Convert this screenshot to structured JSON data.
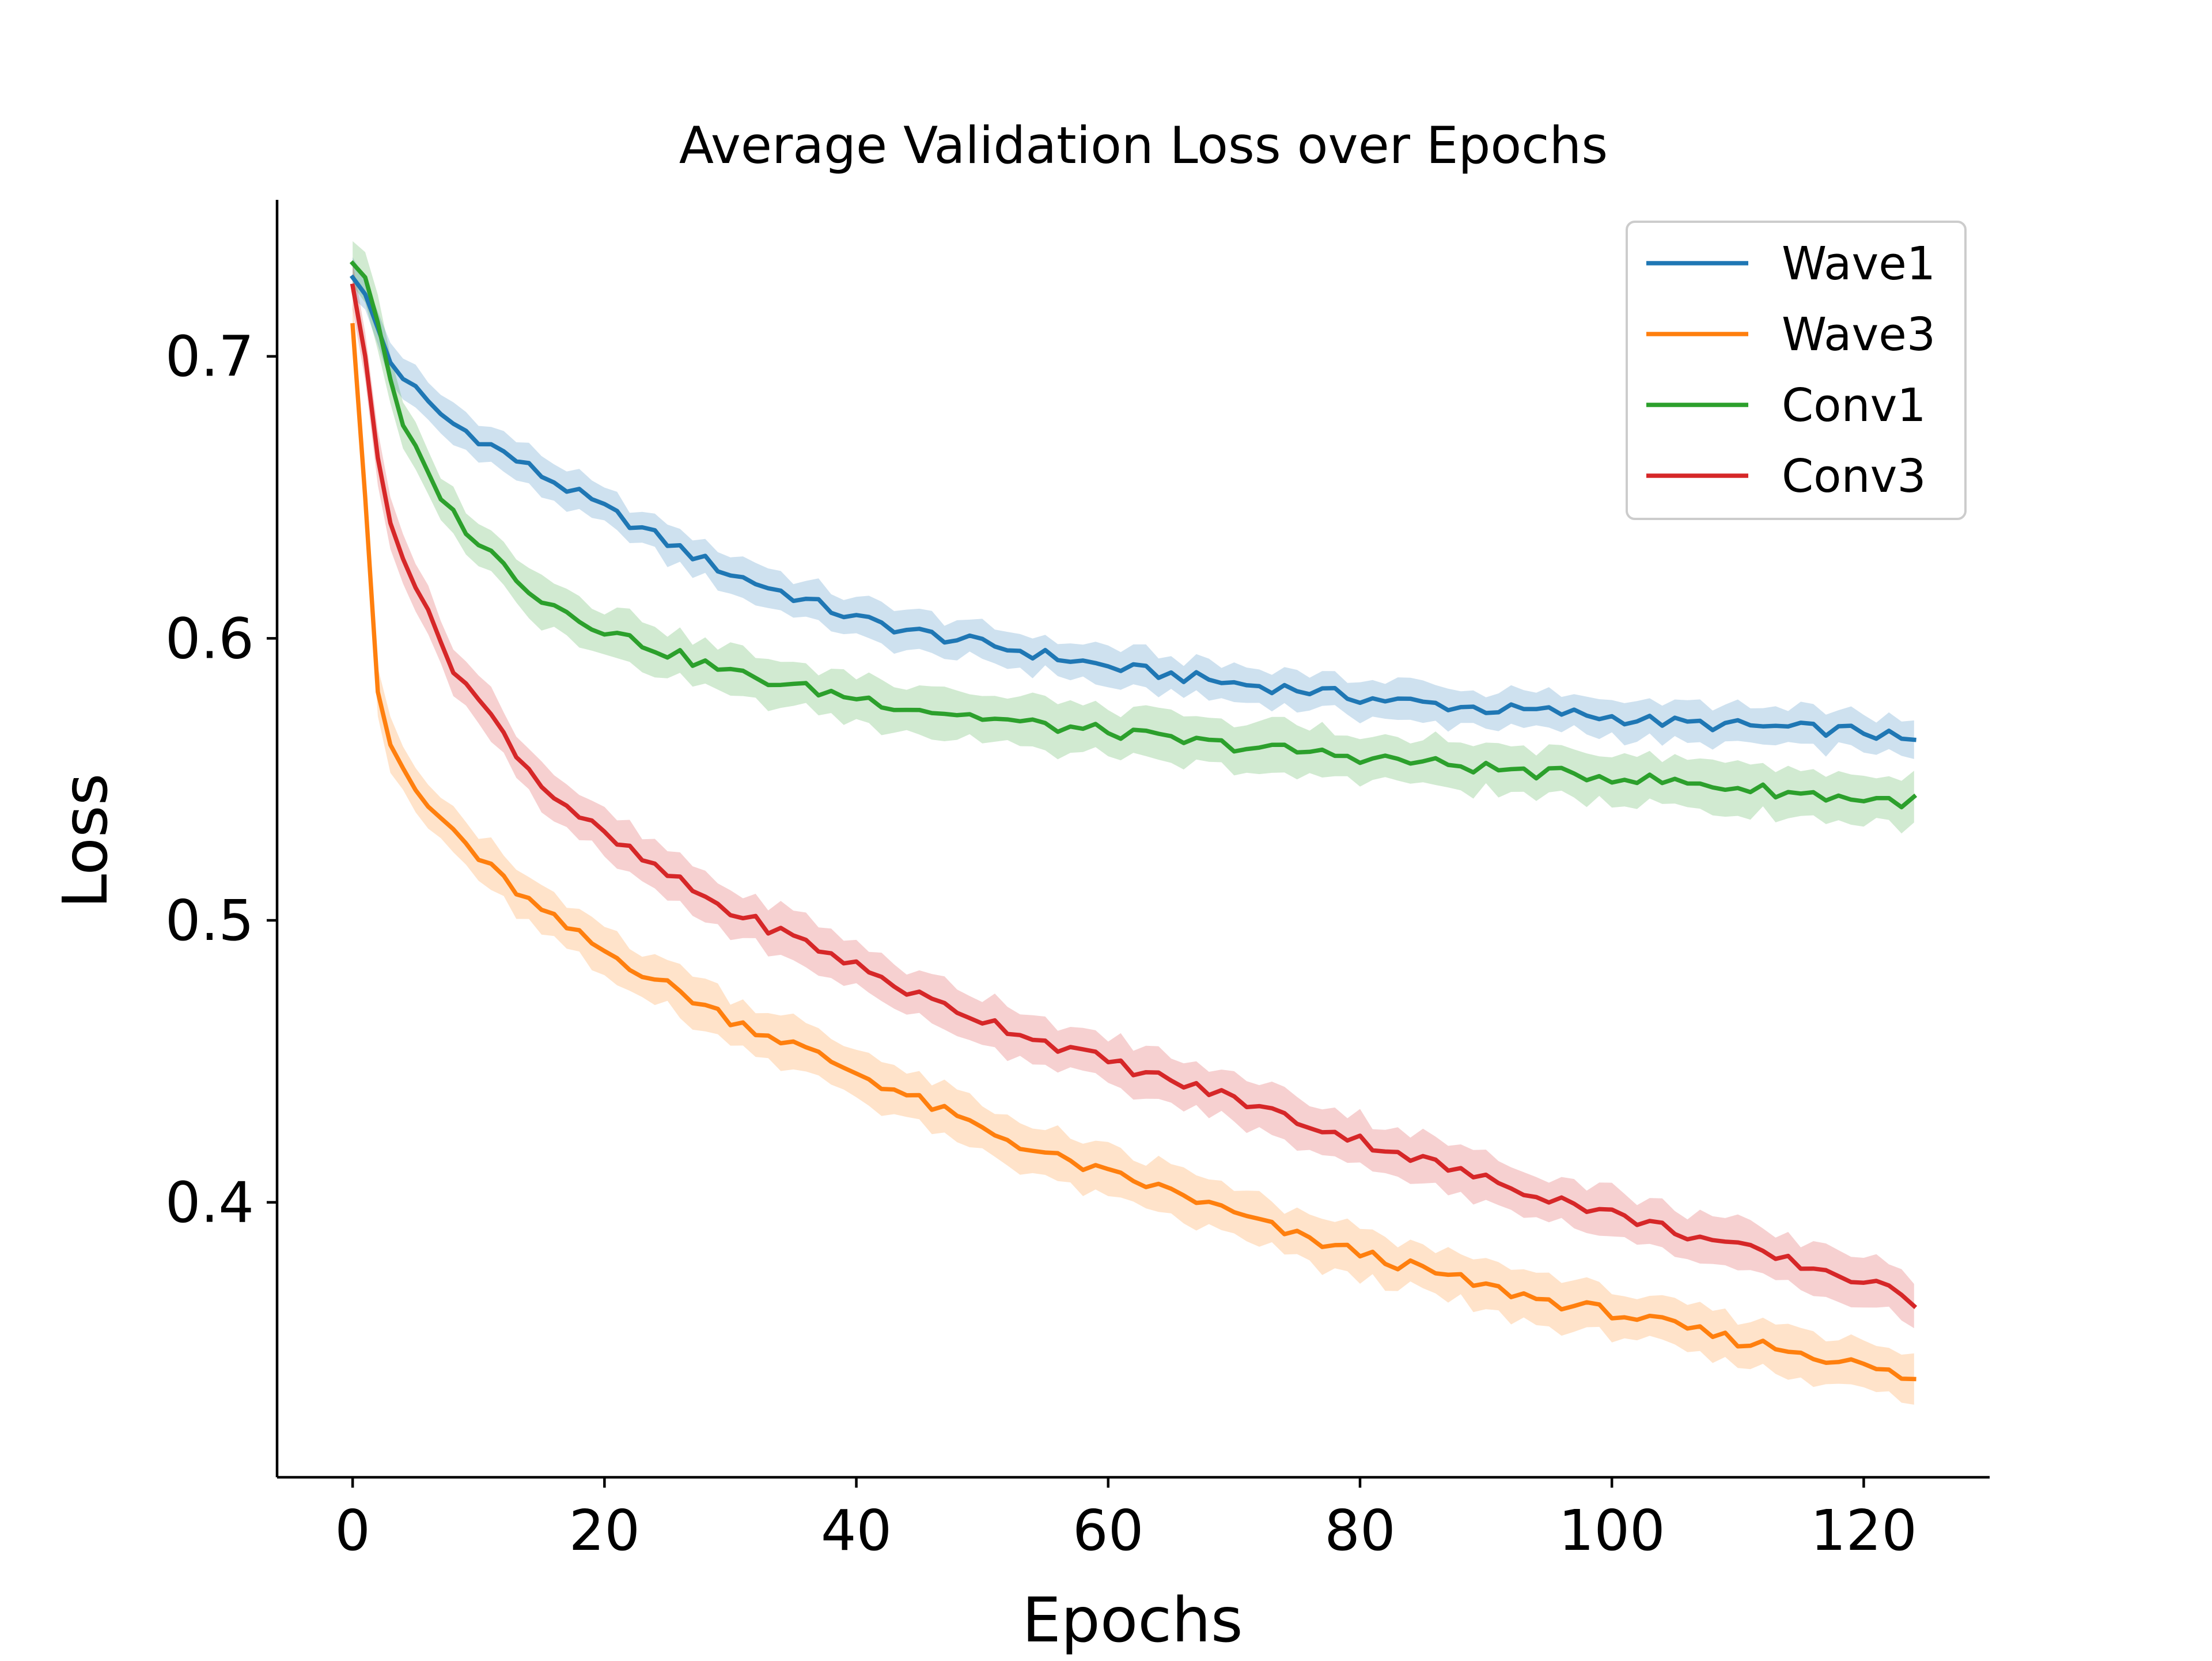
{
  "chart_data": {
    "type": "line",
    "title": "Average Validation Loss over Epochs",
    "xlabel": "Epochs",
    "ylabel": "Loss",
    "xlim": [
      -6,
      130
    ],
    "ylim": [
      0.3025,
      0.7555
    ],
    "x_ticks": [
      0,
      20,
      40,
      60,
      80,
      100,
      120
    ],
    "x_tick_labels": [
      "0",
      "20",
      "40",
      "60",
      "80",
      "100",
      "120"
    ],
    "y_ticks": [
      0.4,
      0.5,
      0.6,
      0.7
    ],
    "y_tick_labels": [
      "0.4",
      "0.5",
      "0.6",
      "0.7"
    ],
    "grid": false,
    "legend_position": "top-right",
    "x": {
      "start": 0,
      "end": 124,
      "step": 1
    },
    "series": [
      {
        "name": "Wave1",
        "color": "#1f77b4",
        "band_halfwidth": 0.0065,
        "keypoints": [
          [
            0,
            0.728
          ],
          [
            1,
            0.722
          ],
          [
            2,
            0.71
          ],
          [
            3,
            0.698
          ],
          [
            4,
            0.693
          ],
          [
            6,
            0.683
          ],
          [
            8,
            0.676
          ],
          [
            10,
            0.671
          ],
          [
            15,
            0.658
          ],
          [
            20,
            0.646
          ],
          [
            25,
            0.634
          ],
          [
            30,
            0.623
          ],
          [
            35,
            0.615
          ],
          [
            40,
            0.607
          ],
          [
            45,
            0.602
          ],
          [
            50,
            0.598
          ],
          [
            55,
            0.594
          ],
          [
            60,
            0.59
          ],
          [
            65,
            0.587
          ],
          [
            70,
            0.584
          ],
          [
            75,
            0.582
          ],
          [
            80,
            0.579
          ],
          [
            85,
            0.577
          ],
          [
            90,
            0.575
          ],
          [
            95,
            0.574
          ],
          [
            100,
            0.572
          ],
          [
            105,
            0.57
          ],
          [
            110,
            0.569
          ],
          [
            115,
            0.568
          ],
          [
            120,
            0.567
          ],
          [
            124,
            0.563
          ]
        ]
      },
      {
        "name": "Wave3",
        "color": "#ff7f0e",
        "band_halfwidth": 0.0085,
        "keypoints": [
          [
            0,
            0.711
          ],
          [
            1,
            0.65
          ],
          [
            2,
            0.581
          ],
          [
            3,
            0.563
          ],
          [
            4,
            0.552
          ],
          [
            6,
            0.54
          ],
          [
            8,
            0.532
          ],
          [
            10,
            0.522
          ],
          [
            15,
            0.503
          ],
          [
            20,
            0.489
          ],
          [
            25,
            0.477
          ],
          [
            30,
            0.465
          ],
          [
            35,
            0.456
          ],
          [
            40,
            0.446
          ],
          [
            45,
            0.436
          ],
          [
            50,
            0.426
          ],
          [
            55,
            0.417
          ],
          [
            60,
            0.41
          ],
          [
            65,
            0.404
          ],
          [
            70,
            0.396
          ],
          [
            75,
            0.388
          ],
          [
            80,
            0.382
          ],
          [
            85,
            0.376
          ],
          [
            90,
            0.37
          ],
          [
            95,
            0.365
          ],
          [
            100,
            0.361
          ],
          [
            105,
            0.356
          ],
          [
            110,
            0.351
          ],
          [
            115,
            0.347
          ],
          [
            120,
            0.342
          ],
          [
            124,
            0.337
          ]
        ]
      },
      {
        "name": "Conv1",
        "color": "#2ca02c",
        "band_halfwidth": 0.0085,
        "keypoints": [
          [
            0,
            0.733
          ],
          [
            1,
            0.728
          ],
          [
            2,
            0.712
          ],
          [
            3,
            0.69
          ],
          [
            4,
            0.675
          ],
          [
            6,
            0.658
          ],
          [
            8,
            0.644
          ],
          [
            10,
            0.634
          ],
          [
            15,
            0.614
          ],
          [
            20,
            0.603
          ],
          [
            25,
            0.595
          ],
          [
            30,
            0.588
          ],
          [
            35,
            0.583
          ],
          [
            40,
            0.579
          ],
          [
            45,
            0.575
          ],
          [
            50,
            0.572
          ],
          [
            55,
            0.569
          ],
          [
            60,
            0.567
          ],
          [
            65,
            0.564
          ],
          [
            70,
            0.562
          ],
          [
            75,
            0.56
          ],
          [
            80,
            0.558
          ],
          [
            85,
            0.556
          ],
          [
            90,
            0.554
          ],
          [
            95,
            0.552
          ],
          [
            100,
            0.551
          ],
          [
            105,
            0.549
          ],
          [
            110,
            0.547
          ],
          [
            115,
            0.545
          ],
          [
            120,
            0.543
          ],
          [
            124,
            0.542
          ]
        ]
      },
      {
        "name": "Conv3",
        "color": "#d62728",
        "band_halfwidth": 0.0085,
        "keypoints": [
          [
            0,
            0.725
          ],
          [
            1,
            0.7
          ],
          [
            2,
            0.664
          ],
          [
            3,
            0.643
          ],
          [
            4,
            0.63
          ],
          [
            6,
            0.608
          ],
          [
            8,
            0.59
          ],
          [
            10,
            0.578
          ],
          [
            15,
            0.548
          ],
          [
            20,
            0.53
          ],
          [
            25,
            0.516
          ],
          [
            30,
            0.503
          ],
          [
            35,
            0.494
          ],
          [
            40,
            0.484
          ],
          [
            45,
            0.473
          ],
          [
            50,
            0.465
          ],
          [
            55,
            0.457
          ],
          [
            60,
            0.45
          ],
          [
            65,
            0.443
          ],
          [
            70,
            0.437
          ],
          [
            75,
            0.429
          ],
          [
            80,
            0.422
          ],
          [
            85,
            0.415
          ],
          [
            90,
            0.408
          ],
          [
            95,
            0.402
          ],
          [
            100,
            0.396
          ],
          [
            105,
            0.39
          ],
          [
            110,
            0.384
          ],
          [
            115,
            0.378
          ],
          [
            120,
            0.372
          ],
          [
            124,
            0.365
          ]
        ]
      }
    ]
  }
}
